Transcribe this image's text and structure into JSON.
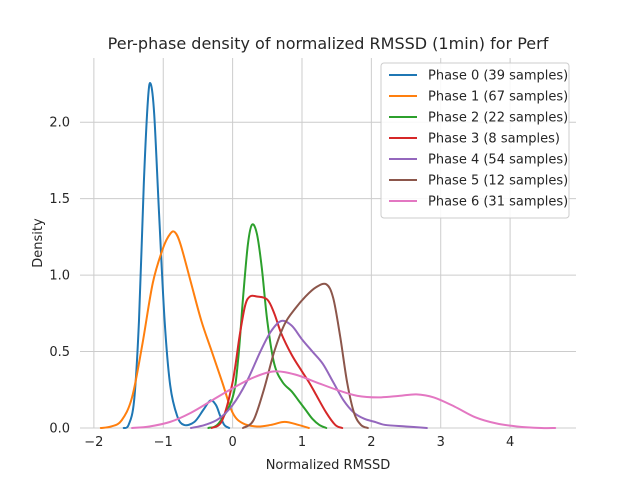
{
  "chart_data": {
    "type": "line",
    "title": "Per-phase density of normalized RMSSD (1min) for Perf",
    "xlabel": "Normalized RMSSD",
    "ylabel": "Density",
    "xlim": [
      -2.2,
      4.95
    ],
    "ylim": [
      0,
      2.42
    ],
    "xticks": [
      -2,
      -1,
      0,
      1,
      2,
      3,
      4
    ],
    "xtick_labels": [
      "−2",
      "−1",
      "0",
      "1",
      "2",
      "3",
      "4"
    ],
    "yticks": [
      0,
      0.5,
      1.0,
      1.5,
      2.0
    ],
    "ytick_labels": [
      "0.0",
      "0.5",
      "1.0",
      "1.5",
      "2.0"
    ],
    "grid": true,
    "legend_position": "top-right",
    "series": [
      {
        "name": "Phase 0 (39 samples)",
        "color": "#1f77b4",
        "points": [
          [
            -1.57,
            0.0
          ],
          [
            -1.5,
            0.02
          ],
          [
            -1.42,
            0.18
          ],
          [
            -1.35,
            0.7
          ],
          [
            -1.28,
            1.6
          ],
          [
            -1.22,
            2.15
          ],
          [
            -1.18,
            2.25
          ],
          [
            -1.13,
            2.05
          ],
          [
            -1.06,
            1.4
          ],
          [
            -0.98,
            0.7
          ],
          [
            -0.9,
            0.28
          ],
          [
            -0.8,
            0.08
          ],
          [
            -0.7,
            0.02
          ],
          [
            -0.55,
            0.04
          ],
          [
            -0.42,
            0.12
          ],
          [
            -0.32,
            0.18
          ],
          [
            -0.24,
            0.15
          ],
          [
            -0.18,
            0.08
          ],
          [
            -0.12,
            0.02
          ],
          [
            -0.05,
            0.0
          ]
        ]
      },
      {
        "name": "Phase 1 (67 samples)",
        "color": "#ff7f0e",
        "points": [
          [
            -1.9,
            0.0
          ],
          [
            -1.75,
            0.01
          ],
          [
            -1.6,
            0.05
          ],
          [
            -1.45,
            0.2
          ],
          [
            -1.3,
            0.55
          ],
          [
            -1.15,
            0.95
          ],
          [
            -1.0,
            1.18
          ],
          [
            -0.9,
            1.27
          ],
          [
            -0.83,
            1.28
          ],
          [
            -0.75,
            1.2
          ],
          [
            -0.6,
            0.95
          ],
          [
            -0.45,
            0.7
          ],
          [
            -0.3,
            0.5
          ],
          [
            -0.15,
            0.3
          ],
          [
            0.0,
            0.1
          ],
          [
            0.15,
            0.03
          ],
          [
            0.35,
            0.01
          ],
          [
            0.55,
            0.02
          ],
          [
            0.75,
            0.04
          ],
          [
            0.95,
            0.02
          ],
          [
            1.1,
            0.0
          ]
        ]
      },
      {
        "name": "Phase 2 (22 samples)",
        "color": "#2ca02c",
        "points": [
          [
            -0.35,
            0.0
          ],
          [
            -0.2,
            0.03
          ],
          [
            0.0,
            0.2
          ],
          [
            0.08,
            0.45
          ],
          [
            0.15,
            0.85
          ],
          [
            0.22,
            1.2
          ],
          [
            0.28,
            1.33
          ],
          [
            0.35,
            1.27
          ],
          [
            0.42,
            1.05
          ],
          [
            0.5,
            0.7
          ],
          [
            0.6,
            0.42
          ],
          [
            0.72,
            0.3
          ],
          [
            0.85,
            0.24
          ],
          [
            0.95,
            0.18
          ],
          [
            1.05,
            0.12
          ],
          [
            1.15,
            0.06
          ],
          [
            1.25,
            0.02
          ],
          [
            1.35,
            0.0
          ]
        ]
      },
      {
        "name": "Phase 3 (8 samples)",
        "color": "#d62728",
        "points": [
          [
            -0.3,
            0.0
          ],
          [
            -0.15,
            0.05
          ],
          [
            0.0,
            0.3
          ],
          [
            0.1,
            0.6
          ],
          [
            0.18,
            0.8
          ],
          [
            0.25,
            0.86
          ],
          [
            0.35,
            0.86
          ],
          [
            0.5,
            0.84
          ],
          [
            0.6,
            0.75
          ],
          [
            0.7,
            0.62
          ],
          [
            0.85,
            0.48
          ],
          [
            1.0,
            0.37
          ],
          [
            1.1,
            0.3
          ],
          [
            1.2,
            0.22
          ],
          [
            1.35,
            0.1
          ],
          [
            1.48,
            0.02
          ],
          [
            1.58,
            0.0
          ]
        ]
      },
      {
        "name": "Phase 4 (54 samples)",
        "color": "#9467bd",
        "points": [
          [
            -0.6,
            0.0
          ],
          [
            -0.4,
            0.02
          ],
          [
            -0.2,
            0.06
          ],
          [
            0.0,
            0.15
          ],
          [
            0.2,
            0.3
          ],
          [
            0.4,
            0.5
          ],
          [
            0.55,
            0.63
          ],
          [
            0.7,
            0.7
          ],
          [
            0.85,
            0.67
          ],
          [
            1.0,
            0.58
          ],
          [
            1.15,
            0.5
          ],
          [
            1.3,
            0.42
          ],
          [
            1.45,
            0.3
          ],
          [
            1.6,
            0.18
          ],
          [
            1.75,
            0.1
          ],
          [
            1.9,
            0.06
          ],
          [
            2.05,
            0.04
          ],
          [
            2.2,
            0.02
          ],
          [
            2.5,
            0.01
          ],
          [
            2.8,
            0.0
          ]
        ]
      },
      {
        "name": "Phase 5 (12 samples)",
        "color": "#8c564b",
        "points": [
          [
            0.15,
            0.0
          ],
          [
            0.3,
            0.05
          ],
          [
            0.45,
            0.25
          ],
          [
            0.6,
            0.5
          ],
          [
            0.75,
            0.68
          ],
          [
            0.9,
            0.78
          ],
          [
            1.05,
            0.86
          ],
          [
            1.2,
            0.92
          ],
          [
            1.35,
            0.94
          ],
          [
            1.45,
            0.85
          ],
          [
            1.55,
            0.6
          ],
          [
            1.65,
            0.3
          ],
          [
            1.75,
            0.1
          ],
          [
            1.85,
            0.02
          ],
          [
            1.95,
            0.0
          ]
        ]
      },
      {
        "name": "Phase 6 (31 samples)",
        "color": "#e377c2",
        "points": [
          [
            -1.45,
            0.0
          ],
          [
            -1.2,
            0.01
          ],
          [
            -0.9,
            0.04
          ],
          [
            -0.6,
            0.1
          ],
          [
            -0.3,
            0.18
          ],
          [
            0.0,
            0.26
          ],
          [
            0.3,
            0.33
          ],
          [
            0.6,
            0.37
          ],
          [
            0.9,
            0.35
          ],
          [
            1.2,
            0.3
          ],
          [
            1.5,
            0.25
          ],
          [
            1.8,
            0.21
          ],
          [
            2.1,
            0.2
          ],
          [
            2.4,
            0.21
          ],
          [
            2.65,
            0.22
          ],
          [
            2.9,
            0.2
          ],
          [
            3.2,
            0.14
          ],
          [
            3.5,
            0.07
          ],
          [
            3.8,
            0.03
          ],
          [
            4.1,
            0.01
          ],
          [
            4.45,
            0.0
          ],
          [
            4.65,
            0.0
          ]
        ]
      }
    ]
  }
}
